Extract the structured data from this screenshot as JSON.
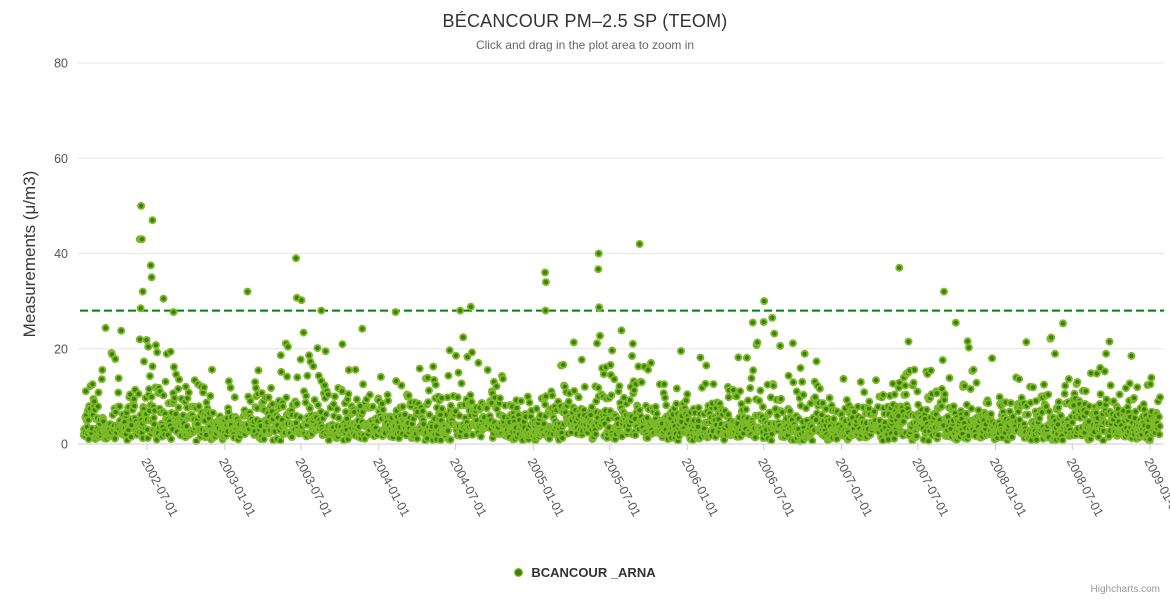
{
  "title": "BÉCANCOUR PM–2.5 SP (TEOM)",
  "subtitle": "Click and drag in the plot area to zoom in",
  "credits": "Highcharts.com",
  "legend": {
    "label": "BCANCOUR _ARNA"
  },
  "colors": {
    "marker_outer": "#7CBA2A",
    "marker_inner": "#3E7D07",
    "threshold_line": "#008000",
    "gridline": "#e6e6e6",
    "axis_line": "#cccccc",
    "tick_label": "#555555"
  },
  "chart_data": {
    "type": "scatter",
    "title": "BÉCANCOUR PM–2.5 SP (TEOM)",
    "subtitle": "Click and drag in the plot area to zoom in",
    "xlabel": "",
    "ylabel": "Measurements (μ/m3)",
    "x_axis": {
      "type": "datetime",
      "tick_labels": [
        "2002-07-01",
        "2003-01-01",
        "2003-07-01",
        "2004-01-01",
        "2004-07-01",
        "2005-01-01",
        "2005-07-01",
        "2006-01-01",
        "2006-07-01",
        "2007-01-01",
        "2007-07-01",
        "2008-01-01",
        "2008-07-01",
        "2009-01-01"
      ],
      "label_rotation_deg": 62
    },
    "y_axis": {
      "title": "Measurements (μ/m3)",
      "ticks": [
        0,
        20,
        40,
        60,
        80
      ],
      "min": 0,
      "max": 80,
      "grid": true
    },
    "threshold_line": {
      "value": 28,
      "style": "dashed",
      "color": "#008000",
      "dash": "8,4",
      "width": 2
    },
    "legend_position": "bottom-center",
    "series": [
      {
        "name": "BCANCOUR _ARNA",
        "marker": {
          "outer_color": "#7CBA2A",
          "inner_color": "#3E7D07",
          "radius": 4
        },
        "cloud": {
          "description": "Dense near-daily PM2.5 measurements; bulk of values 0-12 µ/m3, tail to ~26, mild summer maximum",
          "seed": 42,
          "start": "2002-02-01",
          "end": "2009-01-25",
          "interval_days": 1,
          "skip_probability": 0.02,
          "exp_mean": 3.8,
          "base_offset": 0.5,
          "uniform_extra": 2.0,
          "bump_probability": 0.05,
          "bump_max": 6,
          "seasonal_amplitude": 0.28,
          "seasonal_peak_doy": 190,
          "value_min": 0.2,
          "value_cap": 26
        },
        "outliers": [
          {
            "date": "2002-06-14",
            "value": 43
          },
          {
            "date": "2002-06-17",
            "value": 50
          },
          {
            "date": "2002-06-19",
            "value": 43
          },
          {
            "date": "2002-06-21",
            "value": 32
          },
          {
            "date": "2002-06-16",
            "value": 28.5
          },
          {
            "date": "2002-07-14",
            "value": 47
          },
          {
            "date": "2002-07-10",
            "value": 37.5
          },
          {
            "date": "2002-07-12",
            "value": 35
          },
          {
            "date": "2002-08-09",
            "value": 30.5
          },
          {
            "date": "2002-09-02",
            "value": 27.7
          },
          {
            "date": "2003-02-24",
            "value": 32
          },
          {
            "date": "2003-06-19",
            "value": 39
          },
          {
            "date": "2003-06-21",
            "value": 30.7
          },
          {
            "date": "2003-07-02",
            "value": 30.2
          },
          {
            "date": "2003-08-18",
            "value": 28
          },
          {
            "date": "2004-02-10",
            "value": 27.7
          },
          {
            "date": "2004-07-12",
            "value": 28
          },
          {
            "date": "2004-08-06",
            "value": 28.8
          },
          {
            "date": "2005-01-29",
            "value": 36
          },
          {
            "date": "2005-01-31",
            "value": 34
          },
          {
            "date": "2005-01-30",
            "value": 28
          },
          {
            "date": "2005-06-04",
            "value": 36.7
          },
          {
            "date": "2005-06-05",
            "value": 40
          },
          {
            "date": "2005-06-06",
            "value": 28.7
          },
          {
            "date": "2005-09-10",
            "value": 42
          },
          {
            "date": "2006-07-02",
            "value": 30
          },
          {
            "date": "2006-07-21",
            "value": 26.5
          },
          {
            "date": "2007-05-18",
            "value": 37
          },
          {
            "date": "2007-09-01",
            "value": 32
          }
        ]
      }
    ]
  }
}
